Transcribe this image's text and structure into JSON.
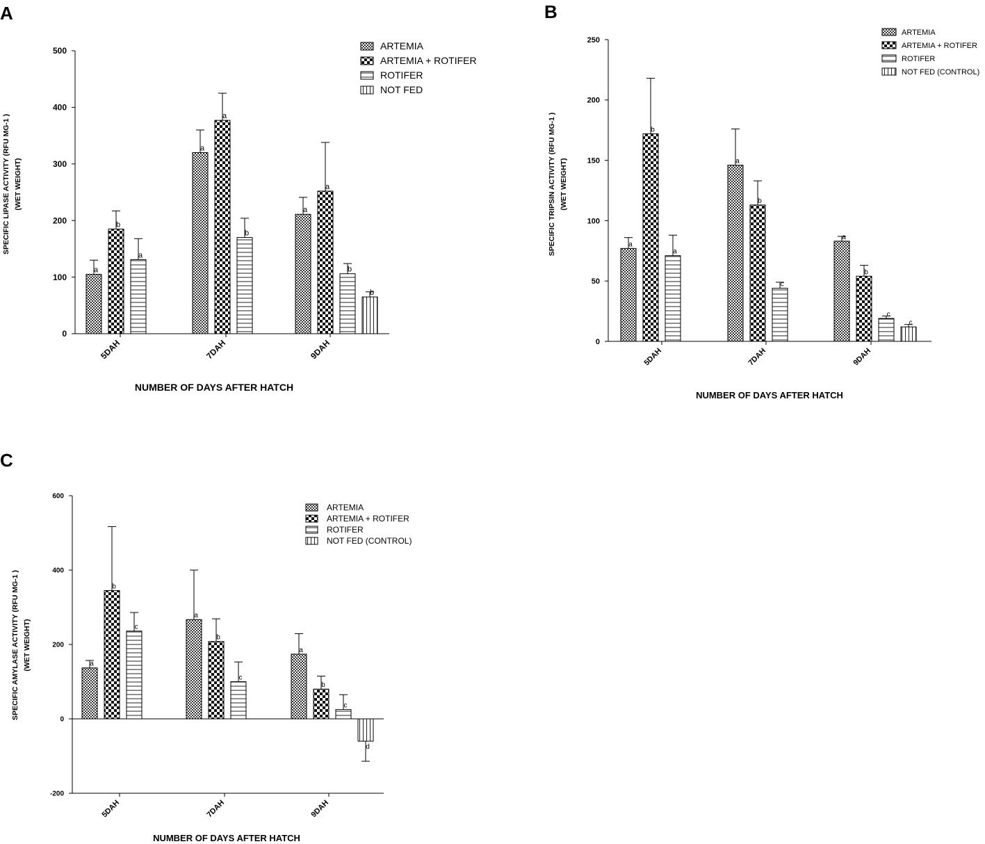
{
  "chart_data": [
    {
      "panel": "A",
      "type": "bar",
      "title": "",
      "xlabel": "NUMBER OF DAYS AFTER HATCH",
      "ylabel_lines": [
        "SPECIFIC LIPASE ACTIVITY (RFU MG-1 )",
        "(WET WEIGHT)"
      ],
      "ylim": [
        0,
        500
      ],
      "yticks": [
        0,
        100,
        200,
        300,
        400,
        500
      ],
      "grid": false,
      "legend_position": "top-right",
      "categories": [
        "5DAH",
        "7DAH",
        "9DAH"
      ],
      "series": [
        {
          "name": "ARTEMIA",
          "pattern": "fine-check",
          "values": [
            105,
            320,
            211
          ],
          "errors": [
            25,
            40,
            30
          ],
          "labels": [
            "a",
            "a",
            "a"
          ]
        },
        {
          "name": "ARTEMIA + ROTIFER",
          "pattern": "coarse-check",
          "values": [
            185,
            377,
            252
          ],
          "errors": [
            32,
            48,
            86
          ],
          "labels": [
            "b",
            "a",
            "a"
          ]
        },
        {
          "name": "ROTIFER",
          "pattern": "horizontal",
          "values": [
            131,
            170,
            106
          ],
          "errors": [
            37,
            34,
            18
          ],
          "labels": [
            "a",
            "b",
            "b"
          ]
        },
        {
          "name": "NOT FED",
          "pattern": "vertical",
          "values": [
            null,
            null,
            65
          ],
          "errors": [
            null,
            null,
            9
          ],
          "labels": [
            null,
            null,
            "b"
          ]
        }
      ]
    },
    {
      "panel": "B",
      "type": "bar",
      "title": "",
      "xlabel": "NUMBER OF DAYS AFTER HATCH",
      "ylabel_lines": [
        "SPECIFIC TRIPSIN ACTIVITY (RFU MG-1 )",
        "(WET WEIGHT)"
      ],
      "ylim": [
        0,
        250
      ],
      "yticks": [
        0,
        50,
        100,
        150,
        200,
        250
      ],
      "grid": false,
      "legend_position": "top-right",
      "categories": [
        "5DAH",
        "7DAH",
        "9DAH"
      ],
      "series": [
        {
          "name": "ARTEMIA",
          "pattern": "fine-check",
          "values": [
            77,
            146,
            83
          ],
          "errors": [
            9,
            30,
            4
          ],
          "labels": [
            "a",
            "a",
            "a"
          ]
        },
        {
          "name": "ARTEMIA + ROTIFER",
          "pattern": "coarse-check",
          "values": [
            172,
            113,
            54
          ],
          "errors": [
            46,
            20,
            9
          ],
          "labels": [
            "b",
            "b",
            "b"
          ]
        },
        {
          "name": "ROTIFER",
          "pattern": "horizontal",
          "values": [
            71,
            44,
            19
          ],
          "errors": [
            17,
            5,
            2
          ],
          "labels": [
            "a",
            "c",
            "c"
          ]
        },
        {
          "name": "NOT FED (CONTROL)",
          "pattern": "vertical",
          "values": [
            null,
            null,
            12
          ],
          "errors": [
            null,
            null,
            2
          ],
          "labels": [
            null,
            null,
            "c"
          ]
        }
      ]
    },
    {
      "panel": "C",
      "type": "bar",
      "title": "",
      "xlabel": "NUMBER OF DAYS AFTER HATCH",
      "ylabel_lines": [
        "SPECIFIC AMYLASE ACTIVITY (RFU MG-1 )",
        "(WET WEIGHT)"
      ],
      "ylim": [
        -200,
        600
      ],
      "yticks": [
        -200,
        0,
        200,
        400,
        600
      ],
      "grid": false,
      "legend_position": "top-right",
      "categories": [
        "5DAH",
        "7DAH",
        "9DAH"
      ],
      "series": [
        {
          "name": "ARTEMIA",
          "pattern": "fine-check",
          "values": [
            137,
            267,
            174
          ],
          "errors": [
            20,
            133,
            55
          ],
          "labels": [
            "a",
            "a",
            "a"
          ]
        },
        {
          "name": "ARTEMIA + ROTIFER",
          "pattern": "coarse-check",
          "values": [
            345,
            208,
            80
          ],
          "errors": [
            172,
            61,
            35
          ],
          "labels": [
            "b",
            "b",
            "b"
          ]
        },
        {
          "name": "ROTIFER",
          "pattern": "horizontal",
          "values": [
            236,
            100,
            25
          ],
          "errors": [
            50,
            53,
            40
          ],
          "labels": [
            "c",
            "c",
            "c"
          ]
        },
        {
          "name": "NOT FED (CONTROL)",
          "pattern": "vertical",
          "values": [
            null,
            null,
            -60
          ],
          "errors": [
            null,
            null,
            54
          ],
          "labels": [
            null,
            null,
            "d"
          ]
        }
      ]
    }
  ]
}
